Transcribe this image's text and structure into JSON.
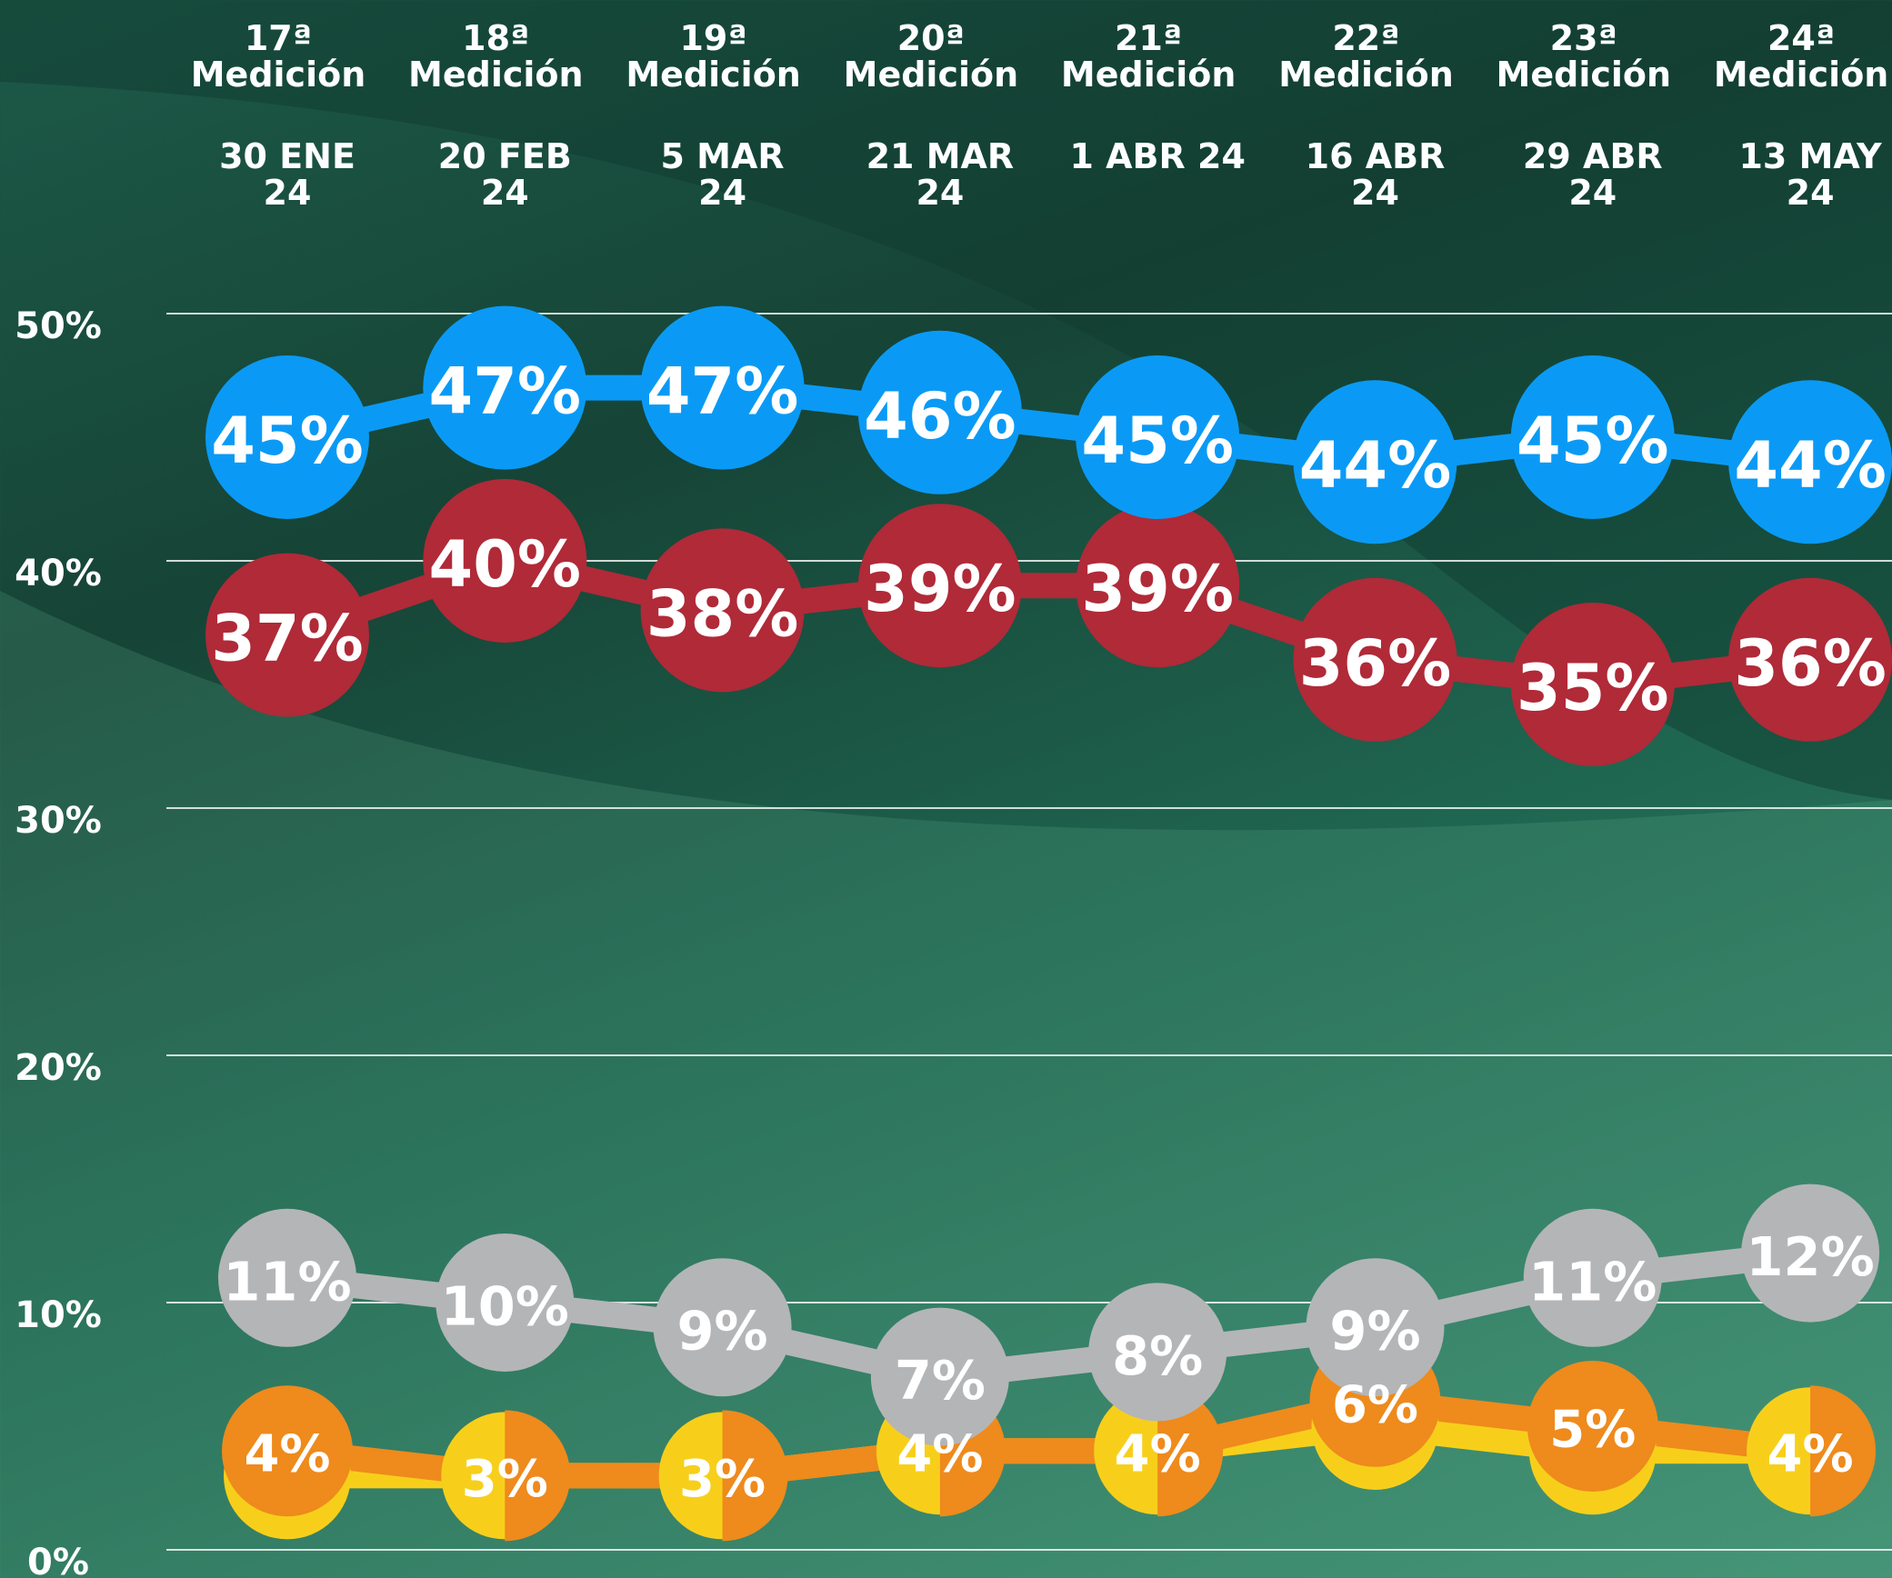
{
  "chart_data": {
    "type": "line",
    "categories": [
      "17ª Medición",
      "18ª Medición",
      "19ª Medición",
      "20ª Medición",
      "21ª Medición",
      "22ª Medición",
      "23ª Medición",
      "24ª Medición"
    ],
    "dates": [
      "30 ENE 24",
      "20 FEB 24",
      "5 MAR 24",
      "21 MAR 24",
      "1 ABR 24",
      "16 ABR 24",
      "29 ABR 24",
      "13 MAY 24"
    ],
    "ylim": [
      0,
      50
    ],
    "yticks": [
      {
        "value": 0,
        "label": "0%"
      },
      {
        "value": 10,
        "label": "10%"
      },
      {
        "value": 20,
        "label": "20%"
      },
      {
        "value": 30,
        "label": "30%"
      },
      {
        "value": 40,
        "label": "40%"
      },
      {
        "value": 50,
        "label": "50%"
      }
    ],
    "grid": true,
    "series": [
      {
        "color": "#f7cf1b",
        "values": [
          3,
          3,
          3,
          4,
          4,
          5,
          4,
          4
        ]
      },
      {
        "color": "#ef8a1c",
        "values": [
          4,
          3,
          3,
          4,
          4,
          6,
          5,
          4
        ],
        "value_labels": [
          "4%",
          "3%",
          "3%",
          "4%",
          "4%",
          "6%",
          "5%",
          "4%"
        ]
      },
      {
        "color": "#b4b5b7",
        "values": [
          11,
          10,
          9,
          7,
          8,
          9,
          11,
          12
        ],
        "value_labels": [
          "11%",
          "10%",
          "9%",
          "7%",
          "8%",
          "9%",
          "11%",
          "12%"
        ]
      },
      {
        "color": "#b02a38",
        "values": [
          37,
          40,
          38,
          39,
          39,
          36,
          35,
          36
        ],
        "value_labels": [
          "37%",
          "40%",
          "38%",
          "39%",
          "39%",
          "36%",
          "35%",
          "36%"
        ]
      },
      {
        "color": "#0a9af5",
        "values": [
          45,
          47,
          47,
          46,
          45,
          44,
          45,
          44
        ],
        "value_labels": [
          "45%",
          "47%",
          "47%",
          "46%",
          "45%",
          "44%",
          "45%",
          "44%"
        ]
      }
    ]
  }
}
